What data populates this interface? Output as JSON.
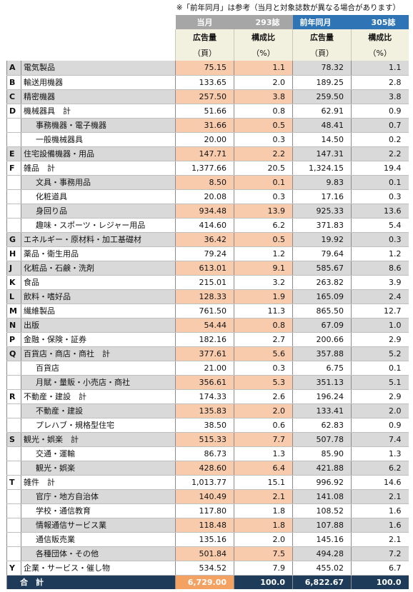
{
  "note": "※「前年同月」は参考（当月と対象誌数が異なる場合があります）",
  "header": {
    "current_label": "当月",
    "current_count": "293誌",
    "previous_label": "前年同月",
    "previous_count": "305誌",
    "ad_volume": "広告量",
    "ad_unit": "（頁）",
    "ratio": "構成比",
    "ratio_unit": "（%）"
  },
  "rows": [
    {
      "letter": "A",
      "name": "電気製品",
      "sub": false,
      "cur": "75.15",
      "cur_ratio": "1.1",
      "prev": "78.32",
      "prev_ratio": "1.1",
      "shade": true
    },
    {
      "letter": "B",
      "name": "輸送用機器",
      "sub": false,
      "cur": "133.65",
      "cur_ratio": "2.0",
      "prev": "189.25",
      "prev_ratio": "2.8",
      "shade": false
    },
    {
      "letter": "C",
      "name": "精密機器",
      "sub": false,
      "cur": "257.50",
      "cur_ratio": "3.8",
      "prev": "259.50",
      "prev_ratio": "3.8",
      "shade": true
    },
    {
      "letter": "D",
      "name": "機械器具　計",
      "sub": false,
      "cur": "51.66",
      "cur_ratio": "0.8",
      "prev": "62.91",
      "prev_ratio": "0.9",
      "shade": false
    },
    {
      "letter": "",
      "name": "事務機器・電子機器",
      "sub": true,
      "cur": "31.66",
      "cur_ratio": "0.5",
      "prev": "48.41",
      "prev_ratio": "0.7",
      "shade": true
    },
    {
      "letter": "",
      "name": "一般機械器具",
      "sub": true,
      "cur": "20.00",
      "cur_ratio": "0.3",
      "prev": "14.50",
      "prev_ratio": "0.2",
      "shade": false
    },
    {
      "letter": "E",
      "name": "住宅設備機器・用品",
      "sub": false,
      "cur": "147.71",
      "cur_ratio": "2.2",
      "prev": "147.31",
      "prev_ratio": "2.2",
      "shade": true
    },
    {
      "letter": "F",
      "name": "雑品　計",
      "sub": false,
      "cur": "1,377.66",
      "cur_ratio": "20.5",
      "prev": "1,324.15",
      "prev_ratio": "19.4",
      "shade": false
    },
    {
      "letter": "",
      "name": "文具・事務用品",
      "sub": true,
      "cur": "8.50",
      "cur_ratio": "0.1",
      "prev": "9.83",
      "prev_ratio": "0.1",
      "shade": true
    },
    {
      "letter": "",
      "name": "化粧道具",
      "sub": true,
      "cur": "20.08",
      "cur_ratio": "0.3",
      "prev": "17.16",
      "prev_ratio": "0.3",
      "shade": false
    },
    {
      "letter": "",
      "name": "身回り品",
      "sub": true,
      "cur": "934.48",
      "cur_ratio": "13.9",
      "prev": "925.33",
      "prev_ratio": "13.6",
      "shade": true
    },
    {
      "letter": "",
      "name": "趣味・スポーツ・レジャー用品",
      "sub": true,
      "cur": "414.60",
      "cur_ratio": "6.2",
      "prev": "371.83",
      "prev_ratio": "5.4",
      "shade": false
    },
    {
      "letter": "G",
      "name": "エネルギー・原材料・加工基礎材",
      "sub": false,
      "cur": "36.42",
      "cur_ratio": "0.5",
      "prev": "19.92",
      "prev_ratio": "0.3",
      "shade": true
    },
    {
      "letter": "H",
      "name": "薬品・衛生用品",
      "sub": false,
      "cur": "79.24",
      "cur_ratio": "1.2",
      "prev": "79.64",
      "prev_ratio": "1.2",
      "shade": false
    },
    {
      "letter": "J",
      "name": "化粧品・石鹸・洗剤",
      "sub": false,
      "cur": "613.01",
      "cur_ratio": "9.1",
      "prev": "585.67",
      "prev_ratio": "8.6",
      "shade": true
    },
    {
      "letter": "K",
      "name": "食品",
      "sub": false,
      "cur": "215.01",
      "cur_ratio": "3.2",
      "prev": "263.82",
      "prev_ratio": "3.9",
      "shade": false
    },
    {
      "letter": "L",
      "name": "飲料・嗜好品",
      "sub": false,
      "cur": "128.33",
      "cur_ratio": "1.9",
      "prev": "165.09",
      "prev_ratio": "2.4",
      "shade": true
    },
    {
      "letter": "M",
      "name": "繊維製品",
      "sub": false,
      "cur": "761.50",
      "cur_ratio": "11.3",
      "prev": "865.50",
      "prev_ratio": "12.7",
      "shade": false
    },
    {
      "letter": "N",
      "name": "出版",
      "sub": false,
      "cur": "54.44",
      "cur_ratio": "0.8",
      "prev": "67.09",
      "prev_ratio": "1.0",
      "shade": true
    },
    {
      "letter": "P",
      "name": "金融・保険・証券",
      "sub": false,
      "cur": "182.16",
      "cur_ratio": "2.7",
      "prev": "200.66",
      "prev_ratio": "2.9",
      "shade": false
    },
    {
      "letter": "Q",
      "name": "百貨店・商店・商社　計",
      "sub": false,
      "cur": "377.61",
      "cur_ratio": "5.6",
      "prev": "357.88",
      "prev_ratio": "5.2",
      "shade": true
    },
    {
      "letter": "",
      "name": "百貨店",
      "sub": true,
      "cur": "21.00",
      "cur_ratio": "0.3",
      "prev": "6.75",
      "prev_ratio": "0.1",
      "shade": false
    },
    {
      "letter": "",
      "name": "月賦・量販・小売店・商社",
      "sub": true,
      "cur": "356.61",
      "cur_ratio": "5.3",
      "prev": "351.13",
      "prev_ratio": "5.1",
      "shade": true
    },
    {
      "letter": "R",
      "name": "不動産・建設　計",
      "sub": false,
      "cur": "174.33",
      "cur_ratio": "2.6",
      "prev": "196.24",
      "prev_ratio": "2.9",
      "shade": false
    },
    {
      "letter": "",
      "name": "不動産・建設",
      "sub": true,
      "cur": "135.83",
      "cur_ratio": "2.0",
      "prev": "133.41",
      "prev_ratio": "2.0",
      "shade": true
    },
    {
      "letter": "",
      "name": "プレハブ・規格型住宅",
      "sub": true,
      "cur": "38.50",
      "cur_ratio": "0.6",
      "prev": "62.83",
      "prev_ratio": "0.9",
      "shade": false
    },
    {
      "letter": "S",
      "name": "観光・娯楽　計",
      "sub": false,
      "cur": "515.33",
      "cur_ratio": "7.7",
      "prev": "507.78",
      "prev_ratio": "7.4",
      "shade": true
    },
    {
      "letter": "",
      "name": "交通・運輸",
      "sub": true,
      "cur": "86.73",
      "cur_ratio": "1.3",
      "prev": "85.90",
      "prev_ratio": "1.3",
      "shade": false
    },
    {
      "letter": "",
      "name": "観光・娯楽",
      "sub": true,
      "cur": "428.60",
      "cur_ratio": "6.4",
      "prev": "421.88",
      "prev_ratio": "6.2",
      "shade": true
    },
    {
      "letter": "T",
      "name": "雑件　計",
      "sub": false,
      "cur": "1,013.77",
      "cur_ratio": "15.1",
      "prev": "996.92",
      "prev_ratio": "14.6",
      "shade": false
    },
    {
      "letter": "",
      "name": "官庁・地方自治体",
      "sub": true,
      "cur": "140.49",
      "cur_ratio": "2.1",
      "prev": "141.08",
      "prev_ratio": "2.1",
      "shade": true
    },
    {
      "letter": "",
      "name": "学校・通信教育",
      "sub": true,
      "cur": "117.80",
      "cur_ratio": "1.8",
      "prev": "108.52",
      "prev_ratio": "1.6",
      "shade": false
    },
    {
      "letter": "",
      "name": "情報通信サービス業",
      "sub": true,
      "cur": "118.48",
      "cur_ratio": "1.8",
      "prev": "107.88",
      "prev_ratio": "1.6",
      "shade": true
    },
    {
      "letter": "",
      "name": "通信販売業",
      "sub": true,
      "cur": "135.16",
      "cur_ratio": "2.0",
      "prev": "145.16",
      "prev_ratio": "2.1",
      "shade": false
    },
    {
      "letter": "",
      "name": "各種団体・その他",
      "sub": true,
      "cur": "501.84",
      "cur_ratio": "7.5",
      "prev": "494.28",
      "prev_ratio": "7.2",
      "shade": true
    },
    {
      "letter": "Y",
      "name": "企業・サービス・催し物",
      "sub": false,
      "cur": "534.52",
      "cur_ratio": "7.9",
      "prev": "455.02",
      "prev_ratio": "6.7",
      "shade": false
    }
  ],
  "total": {
    "label": "合　計",
    "cur": "6,729.00",
    "cur_ratio": "100.0",
    "prev": "6,822.67",
    "prev_ratio": "100.0"
  },
  "colors": {
    "header_current": "#a6a6a6",
    "header_previous": "#2f75b5",
    "current_highlight": "#f8cbad",
    "shade": "#d9d9d9",
    "total_bg": "#1f3b5a",
    "total_current": "#f4a261"
  }
}
